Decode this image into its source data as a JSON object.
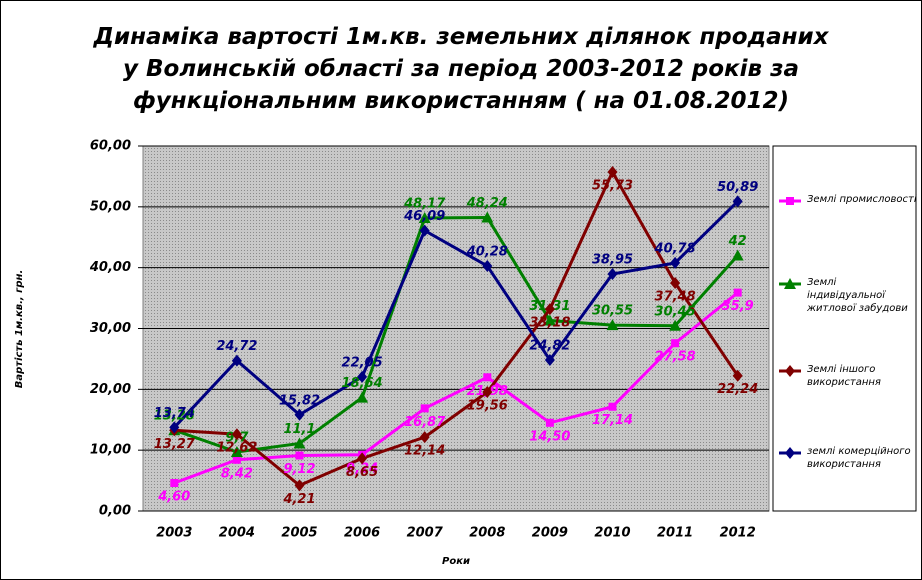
{
  "chart_data": {
    "type": "line",
    "title": "Динаміка вартості 1м.кв. земельних ділянок проданих у Волинській області за період 2003-2012 років за функціональним використанням ( на 01.08.2012)",
    "x_label": "Роки",
    "y_label": "Вартість 1м.кв., грн.",
    "categories": [
      "2003",
      "2004",
      "2005",
      "2006",
      "2007",
      "2008",
      "2009",
      "2010",
      "2011",
      "2012"
    ],
    "ylim": [
      0,
      60
    ],
    "yticks": [
      {
        "value": 0,
        "label": "0,00"
      },
      {
        "value": 10,
        "label": "10,00"
      },
      {
        "value": 20,
        "label": "20,00"
      },
      {
        "value": 30,
        "label": "30,00"
      },
      {
        "value": 40,
        "label": "40,00"
      },
      {
        "value": 50,
        "label": "50,00"
      },
      {
        "value": 60,
        "label": "60,00"
      }
    ],
    "grid": true,
    "legend": "right",
    "series": [
      {
        "name": "Землі промисловості",
        "color": "#ff00ff",
        "marker": "square",
        "values": [
          4.6,
          8.42,
          9.12,
          9.24,
          16.87,
          21.98,
          14.5,
          17.14,
          27.58,
          35.9
        ],
        "value_labels": [
          "4,60",
          "8,42",
          "9,12",
          "9,24",
          "16,87",
          "21,98",
          "14,50",
          "17,14",
          "27,58",
          "35,9"
        ]
      },
      {
        "name": "Землі індивідуальної житлової забудови",
        "color": "#008000",
        "marker": "triangle",
        "values": [
          13.28,
          9.7,
          11.1,
          18.64,
          48.17,
          48.24,
          31.31,
          30.55,
          30.45,
          42
        ],
        "value_labels": [
          "13,28",
          "9,7",
          "11,1",
          "18,64",
          "48,17",
          "48,24",
          "31,31",
          "30,55",
          "30,45",
          "42"
        ]
      },
      {
        "name": "Землі іншого використання",
        "color": "#800000",
        "marker": "diamond",
        "values": [
          13.27,
          12.62,
          4.21,
          8.65,
          12.14,
          19.56,
          33.18,
          55.73,
          37.48,
          22.24
        ],
        "value_labels": [
          "13,27",
          "12,62",
          "4,21",
          "8,65",
          "12,14",
          "19,56",
          "33,18",
          "55,73",
          "37,48",
          "22,24"
        ]
      },
      {
        "name": "землі комерційного використання",
        "color": "#000080",
        "marker": "diamond",
        "values": [
          13.74,
          24.72,
          15.82,
          22.05,
          46.09,
          40.28,
          24.82,
          38.95,
          40.78,
          50.89
        ],
        "value_labels": [
          "13,74",
          "24,72",
          "15,82",
          "22,05",
          "46,09",
          "40,28",
          "24,82",
          "38,95",
          "40,78",
          "50,89"
        ]
      }
    ]
  }
}
